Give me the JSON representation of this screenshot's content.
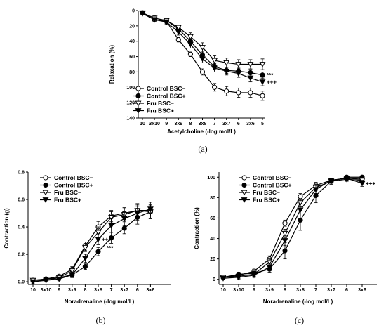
{
  "chart_data": [
    {
      "type": "line",
      "panel_label": "(a)",
      "xlabel": "Acetylcholine (-log mol/L)",
      "ylabel": "Relaxation (%)",
      "categories": [
        "10",
        "3x10",
        "9",
        "3x9",
        "8",
        "3x8",
        "7",
        "3x7",
        "6",
        "3x6",
        "5"
      ],
      "yticks": [
        "0",
        "20",
        "40",
        "60",
        "80",
        "100",
        "120",
        "140"
      ],
      "ylim": [
        0,
        140
      ],
      "y_inverted": true,
      "series": [
        {
          "name": "Control BSC−",
          "marker": "circle-open",
          "values": [
            3,
            12,
            14,
            38,
            57,
            80,
            100,
            105,
            107,
            107,
            111
          ],
          "errors": [
            2,
            3,
            3,
            3,
            3,
            4,
            5,
            6,
            6,
            6,
            6
          ]
        },
        {
          "name": "Control BSC+",
          "marker": "circle-filled",
          "values": [
            3,
            10,
            13,
            24,
            40,
            58,
            73,
            78,
            79,
            81,
            84
          ],
          "errors": [
            2,
            3,
            3,
            3,
            4,
            4,
            4,
            4,
            4,
            4,
            4
          ]
        },
        {
          "name": "Fru BSC−",
          "marker": "triangle-down-open",
          "values": [
            3,
            10,
            13,
            22,
            34,
            48,
            65,
            68,
            70,
            70,
            70
          ],
          "errors": [
            2,
            3,
            3,
            3,
            5,
            6,
            6,
            6,
            6,
            6,
            7
          ]
        },
        {
          "name": "Fru BSC+",
          "marker": "triangle-down-filled",
          "values": [
            4,
            12,
            15,
            28,
            44,
            63,
            75,
            79,
            82,
            88,
            93
          ],
          "errors": [
            2,
            3,
            3,
            4,
            5,
            5,
            5,
            5,
            5,
            5,
            5
          ]
        }
      ],
      "annotations": [
        {
          "text": "***",
          "series": "Control BSC+"
        },
        {
          "text": "+++",
          "series": "Fru BSC+"
        }
      ],
      "legend": "bottom-left"
    },
    {
      "type": "line",
      "panel_label": "(b)",
      "xlabel": "Noradrenaline (-log mol/L)",
      "ylabel": "Contraction (g)",
      "categories": [
        "10",
        "3x10",
        "9",
        "3x9",
        "8",
        "3x8",
        "7",
        "3x7",
        "6",
        "3x6"
      ],
      "yticks": [
        "0.0",
        "0.2",
        "0.4",
        "0.6",
        "0.8"
      ],
      "ylim": [
        -0.02,
        0.8
      ],
      "series": [
        {
          "name": "Control BSC−",
          "marker": "circle-open",
          "values": [
            0.01,
            0.02,
            0.04,
            0.09,
            0.26,
            0.4,
            0.48,
            0.5,
            0.52,
            0.52
          ],
          "errors": [
            0.01,
            0.01,
            0.01,
            0.02,
            0.03,
            0.04,
            0.04,
            0.04,
            0.04,
            0.04
          ]
        },
        {
          "name": "Control BSC+",
          "marker": "circle-filled",
          "values": [
            0.01,
            0.02,
            0.03,
            0.05,
            0.11,
            0.22,
            0.32,
            0.39,
            0.47,
            0.51
          ],
          "errors": [
            0.01,
            0.01,
            0.01,
            0.01,
            0.02,
            0.03,
            0.04,
            0.04,
            0.05,
            0.05
          ]
        },
        {
          "name": "Fru BSC−",
          "marker": "triangle-down-open",
          "values": [
            0.01,
            0.01,
            0.03,
            0.08,
            0.25,
            0.36,
            0.47,
            0.49,
            0.52,
            0.51
          ],
          "errors": [
            0.01,
            0.01,
            0.01,
            0.02,
            0.03,
            0.04,
            0.04,
            0.05,
            0.05,
            0.05
          ]
        },
        {
          "name": "Fru BSC+",
          "marker": "triangle-down-filled",
          "values": [
            0.0,
            0.01,
            0.02,
            0.05,
            0.17,
            0.31,
            0.41,
            0.46,
            0.5,
            0.53
          ],
          "errors": [
            0.01,
            0.01,
            0.01,
            0.02,
            0.03,
            0.04,
            0.05,
            0.05,
            0.05,
            0.05
          ]
        }
      ],
      "annotations": [
        {
          "text": "+++",
          "series": "Fru BSC+"
        },
        {
          "text": "***",
          "series": "Control BSC+"
        }
      ],
      "legend": "top-left"
    },
    {
      "type": "line",
      "panel_label": "(c)",
      "xlabel": "Noradrenaline (-log mol/L)",
      "ylabel": "Contraction (%)",
      "categories": [
        "10",
        "3x10",
        "9",
        "3x9",
        "8",
        "3x8",
        "7",
        "3x7",
        "6",
        "3x6"
      ],
      "yticks": [
        "0",
        "20",
        "40",
        "60",
        "80",
        "100"
      ],
      "ylim": [
        -5,
        105
      ],
      "series": [
        {
          "name": "Control BSC−",
          "marker": "circle-open",
          "values": [
            2,
            4,
            8,
            20,
            55,
            81,
            92,
            97,
            99,
            98
          ],
          "errors": [
            1,
            2,
            2,
            3,
            3,
            3,
            3,
            2,
            2,
            2
          ]
        },
        {
          "name": "Control BSC+",
          "marker": "circle-filled",
          "values": [
            2,
            5,
            6,
            10,
            28,
            58,
            82,
            96,
            100,
            100
          ],
          "errors": [
            1,
            2,
            2,
            3,
            8,
            10,
            7,
            3,
            1,
            1
          ]
        },
        {
          "name": "Fru BSC−",
          "marker": "triangle-down-open",
          "values": [
            2,
            3,
            5,
            17,
            45,
            75,
            90,
            96,
            98,
            97
          ],
          "errors": [
            1,
            2,
            2,
            3,
            4,
            4,
            3,
            2,
            2,
            2
          ]
        },
        {
          "name": "Fru BSC+",
          "marker": "triangle-down-filled",
          "values": [
            1,
            2,
            4,
            12,
            38,
            68,
            88,
            97,
            99,
            94
          ],
          "errors": [
            1,
            2,
            2,
            3,
            5,
            6,
            4,
            2,
            2,
            3
          ]
        }
      ],
      "annotations": [
        {
          "text": "+++",
          "series": "Fru BSC+"
        }
      ],
      "legend": "top-left"
    }
  ]
}
